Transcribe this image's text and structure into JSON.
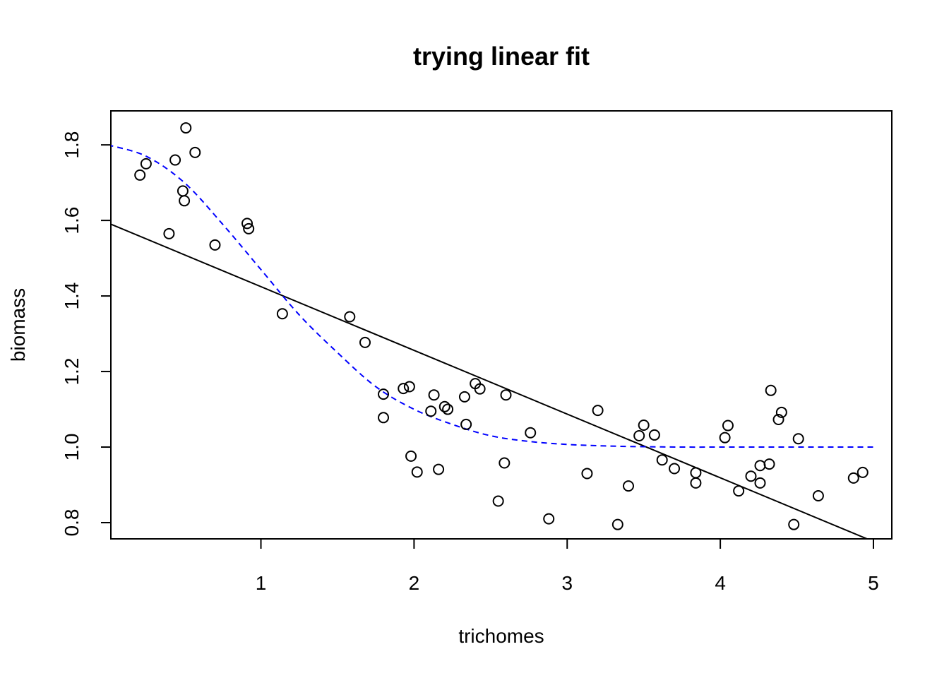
{
  "chart_data": {
    "type": "scatter",
    "title": "trying linear fit",
    "xlabel": "trichomes",
    "ylabel": "biomass",
    "xlim": [
      0.02,
      5.12
    ],
    "ylim": [
      0.757,
      1.89
    ],
    "x_ticks": [
      1,
      2,
      3,
      4,
      5
    ],
    "x_tick_labels": [
      "1",
      "2",
      "3",
      "4",
      "5"
    ],
    "y_ticks": [
      0.8,
      1.0,
      1.2,
      1.4,
      1.6,
      1.8
    ],
    "y_tick_labels": [
      "0.8",
      "1.0",
      "1.2",
      "1.4",
      "1.6",
      "1.8"
    ],
    "grid": false,
    "points": [
      [
        0.21,
        1.72
      ],
      [
        0.25,
        1.75
      ],
      [
        0.4,
        1.565
      ],
      [
        0.44,
        1.76
      ],
      [
        0.49,
        1.678
      ],
      [
        0.5,
        1.652
      ],
      [
        0.51,
        1.845
      ],
      [
        0.57,
        1.78
      ],
      [
        0.7,
        1.535
      ],
      [
        0.91,
        1.592
      ],
      [
        0.92,
        1.578
      ],
      [
        1.14,
        1.353
      ],
      [
        1.58,
        1.345
      ],
      [
        1.68,
        1.277
      ],
      [
        1.8,
        1.14
      ],
      [
        1.8,
        1.078
      ],
      [
        1.93,
        1.155
      ],
      [
        1.97,
        1.16
      ],
      [
        1.98,
        0.976
      ],
      [
        2.02,
        0.934
      ],
      [
        2.11,
        1.095
      ],
      [
        2.13,
        1.138
      ],
      [
        2.16,
        0.941
      ],
      [
        2.2,
        1.107
      ],
      [
        2.22,
        1.1
      ],
      [
        2.33,
        1.133
      ],
      [
        2.34,
        1.06
      ],
      [
        2.4,
        1.168
      ],
      [
        2.43,
        1.154
      ],
      [
        2.55,
        0.857
      ],
      [
        2.59,
        0.958
      ],
      [
        2.6,
        1.138
      ],
      [
        2.76,
        1.038
      ],
      [
        2.88,
        0.81
      ],
      [
        3.13,
        0.93
      ],
      [
        3.2,
        1.097
      ],
      [
        3.33,
        0.795
      ],
      [
        3.4,
        0.897
      ],
      [
        3.47,
        1.03
      ],
      [
        3.5,
        1.058
      ],
      [
        3.57,
        1.032
      ],
      [
        3.62,
        0.966
      ],
      [
        3.7,
        0.943
      ],
      [
        3.84,
        0.905
      ],
      [
        3.84,
        0.932
      ],
      [
        4.03,
        1.025
      ],
      [
        4.05,
        1.057
      ],
      [
        4.12,
        0.884
      ],
      [
        4.2,
        0.923
      ],
      [
        4.26,
        0.905
      ],
      [
        4.26,
        0.951
      ],
      [
        4.32,
        0.955
      ],
      [
        4.33,
        1.15
      ],
      [
        4.38,
        1.073
      ],
      [
        4.4,
        1.092
      ],
      [
        4.48,
        0.795
      ],
      [
        4.51,
        1.022
      ],
      [
        4.64,
        0.871
      ],
      [
        4.87,
        0.918
      ],
      [
        4.93,
        0.933
      ]
    ],
    "linear_fit": {
      "x": [
        0.02,
        5.0
      ],
      "y": [
        1.59,
        0.75
      ],
      "color": "#000000",
      "style": "solid"
    },
    "nonlinear_fit": {
      "x": [
        0.0,
        0.25,
        0.5,
        0.75,
        1.0,
        1.25,
        1.5,
        1.75,
        2.0,
        2.25,
        2.5,
        2.75,
        3.0,
        3.25,
        3.5,
        3.75,
        4.0,
        4.25,
        4.5,
        4.75,
        5.0
      ],
      "y": [
        1.8,
        1.77,
        1.7,
        1.59,
        1.47,
        1.35,
        1.25,
        1.16,
        1.1,
        1.06,
        1.03,
        1.015,
        1.007,
        1.003,
        1.001,
        1.0,
        1.0,
        1.0,
        1.0,
        1.0,
        1.0
      ],
      "color": "#0000ff",
      "style": "dashed"
    }
  }
}
